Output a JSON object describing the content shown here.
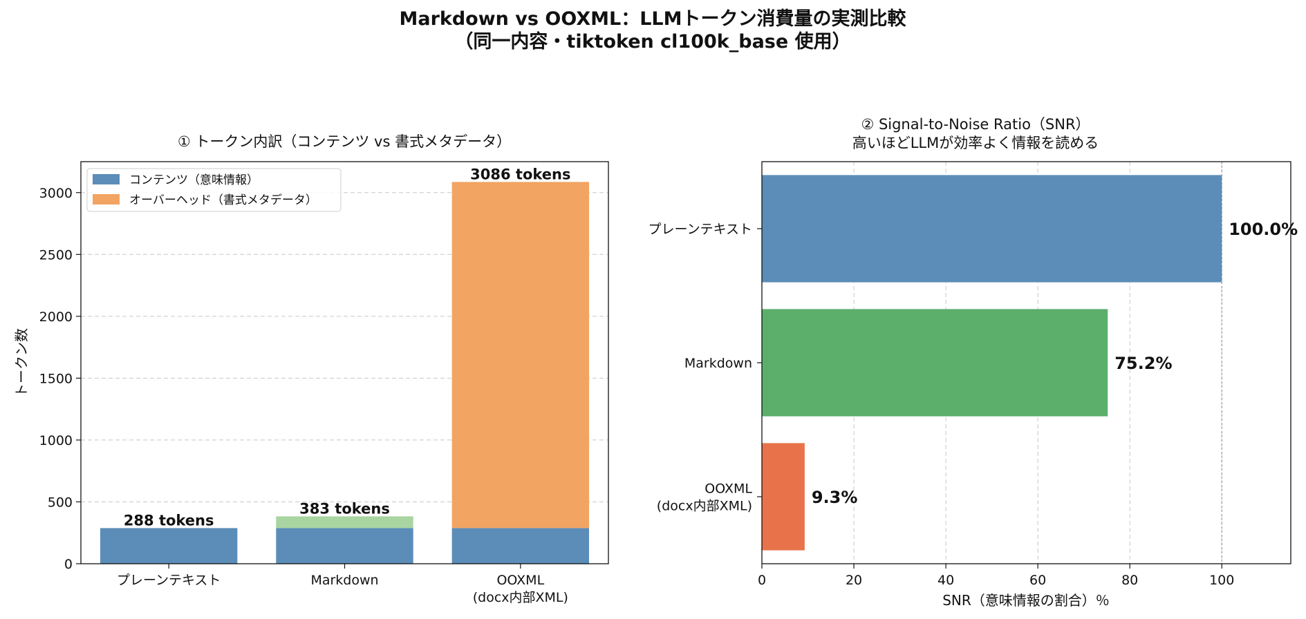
{
  "figure": {
    "title_line1": "Markdown vs OOXML：LLMトークン消費量の実測比較",
    "title_line2": "（同一内容・tiktoken cl100k_base 使用）"
  },
  "chart_data": [
    {
      "type": "bar",
      "stacked": true,
      "title": "① トークン内訳（コンテンツ vs 書式メタデータ）",
      "xlabel": "",
      "ylabel": "トークン数",
      "categories": [
        [
          "プレーンテキスト"
        ],
        [
          "Markdown"
        ],
        [
          "OOXML",
          "(docx内部XML)"
        ]
      ],
      "series": [
        {
          "name": "コンテンツ（意味情報）",
          "values": [
            288,
            288,
            288
          ],
          "color": "#5b8db8"
        },
        {
          "name": "オーバーヘッド（書式メタデータ）",
          "values": [
            0,
            95,
            2798
          ],
          "colors": [
            "#a8d5a0",
            "#a8d5a0",
            "#f2a462"
          ]
        }
      ],
      "totals": [
        288,
        383,
        3086
      ],
      "data_labels": [
        "288 tokens",
        "383 tokens",
        "3086 tokens"
      ],
      "ylim": [
        0,
        3250
      ],
      "yticks": [
        0,
        500,
        1000,
        1500,
        2000,
        2500,
        3000
      ],
      "grid": true,
      "legend_position": "top-left"
    },
    {
      "type": "bar",
      "orientation": "horizontal",
      "title_line1": "② Signal-to-Noise Ratio（SNR）",
      "title_line2": "高いほどLLMが効率よく情報を読める",
      "xlabel": "SNR（意味情報の割合）％",
      "ylabel": "",
      "categories": [
        [
          "プレーンテキスト"
        ],
        [
          "Markdown"
        ],
        [
          "OOXML",
          "(docx内部XML)"
        ]
      ],
      "values": [
        100.0,
        75.2,
        9.3
      ],
      "data_labels": [
        "100.0%",
        "75.2%",
        "9.3%"
      ],
      "colors": [
        "#5b8db8",
        "#5cae6b",
        "#e8734a"
      ],
      "xlim": [
        0,
        115
      ],
      "xticks": [
        0,
        20,
        40,
        60,
        80,
        100
      ],
      "reference_line": 100,
      "grid": true
    }
  ]
}
